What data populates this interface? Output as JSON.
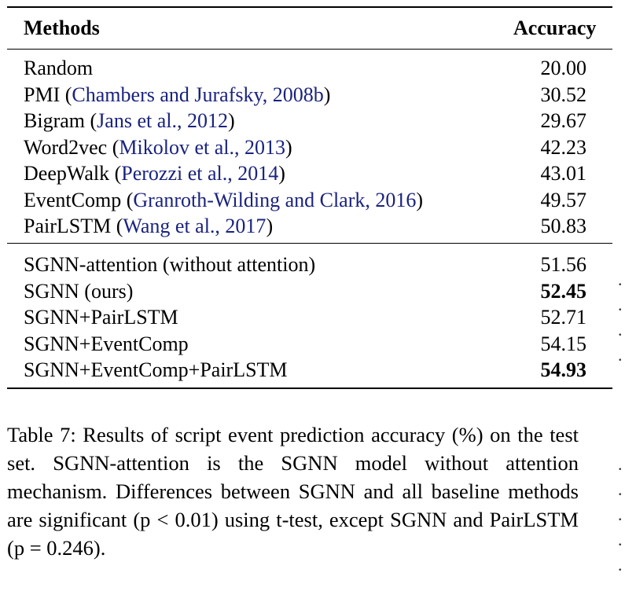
{
  "table": {
    "headers": {
      "method": "Methods",
      "accuracy": "Accuracy"
    },
    "baseline_rows": [
      {
        "method": "Random",
        "citation": "",
        "accuracy": "20.00",
        "bold": false
      },
      {
        "method": "PMI",
        "citation": "Chambers and Jurafsky, 2008b",
        "accuracy": "30.52",
        "bold": false
      },
      {
        "method": "Bigram",
        "citation": "Jans et al., 2012",
        "accuracy": "29.67",
        "bold": false
      },
      {
        "method": "Word2vec",
        "citation": "Mikolov et al., 2013",
        "accuracy": "42.23",
        "bold": false
      },
      {
        "method": "DeepWalk",
        "citation": "Perozzi et al., 2014",
        "accuracy": "43.01",
        "bold": false
      },
      {
        "method": "EventComp",
        "citation": "Granroth-Wilding and Clark, 2016",
        "accuracy": "49.57",
        "bold": false
      },
      {
        "method": "PairLSTM",
        "citation": "Wang et al., 2017",
        "accuracy": "50.83",
        "bold": false
      }
    ],
    "sgnn_rows": [
      {
        "method": "SGNN-attention (without attention)",
        "citation": "",
        "accuracy": "51.56",
        "bold": false
      },
      {
        "method": "SGNN (ours)",
        "citation": "",
        "accuracy": "52.45",
        "bold": true
      },
      {
        "method": "SGNN+PairLSTM",
        "citation": "",
        "accuracy": "52.71",
        "bold": false
      },
      {
        "method": "SGNN+EventComp",
        "citation": "",
        "accuracy": "54.15",
        "bold": false
      },
      {
        "method": "SGNN+EventComp+PairLSTM",
        "citation": "",
        "accuracy": "54.93",
        "bold": true
      }
    ]
  },
  "caption": {
    "text": "Table 7: Results of script event prediction accuracy (%) on the test set. SGNN-attention is the SGNN model without attention mechanism. Differences between SGNN and all baseline methods are significant (p < 0.01) using t-test, except SGNN and PairLSTM (p = 0.246)."
  },
  "colors": {
    "citation": "#1a237e",
    "text": "#000000"
  }
}
